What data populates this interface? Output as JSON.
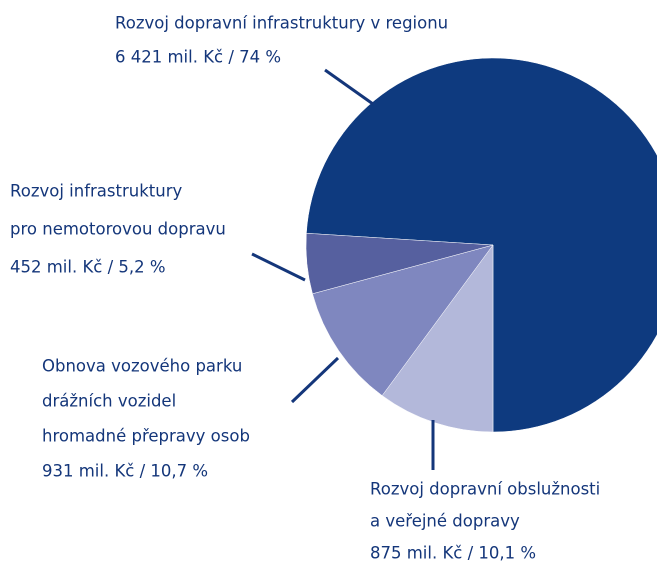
{
  "chart_data": {
    "type": "pie",
    "categories": [
      [
        "Rozvoj dopravní infrastruktury v regionu"
      ],
      [
        "Rozvoj dopravní obslužnosti",
        "a veřejné dopravy"
      ],
      [
        "Obnova vozového parku",
        "drážních vozidel",
        "hromadné přepravy osob"
      ],
      [
        "Rozvoj infrastruktury",
        "pro nemotorovou dopravu"
      ]
    ],
    "values": [
      74,
      10.1,
      10.7,
      5.2
    ],
    "value_labels": [
      "6 421 mil. Kč / 74 %",
      "875 mil. Kč / 10,1 %",
      "931 mil. Kč / 10,7 %",
      "452 mil. Kč / 5,2 %"
    ],
    "colors": [
      "#0e3a7f",
      "#b3b8da",
      "#7f87bf",
      "#56609f"
    ]
  }
}
